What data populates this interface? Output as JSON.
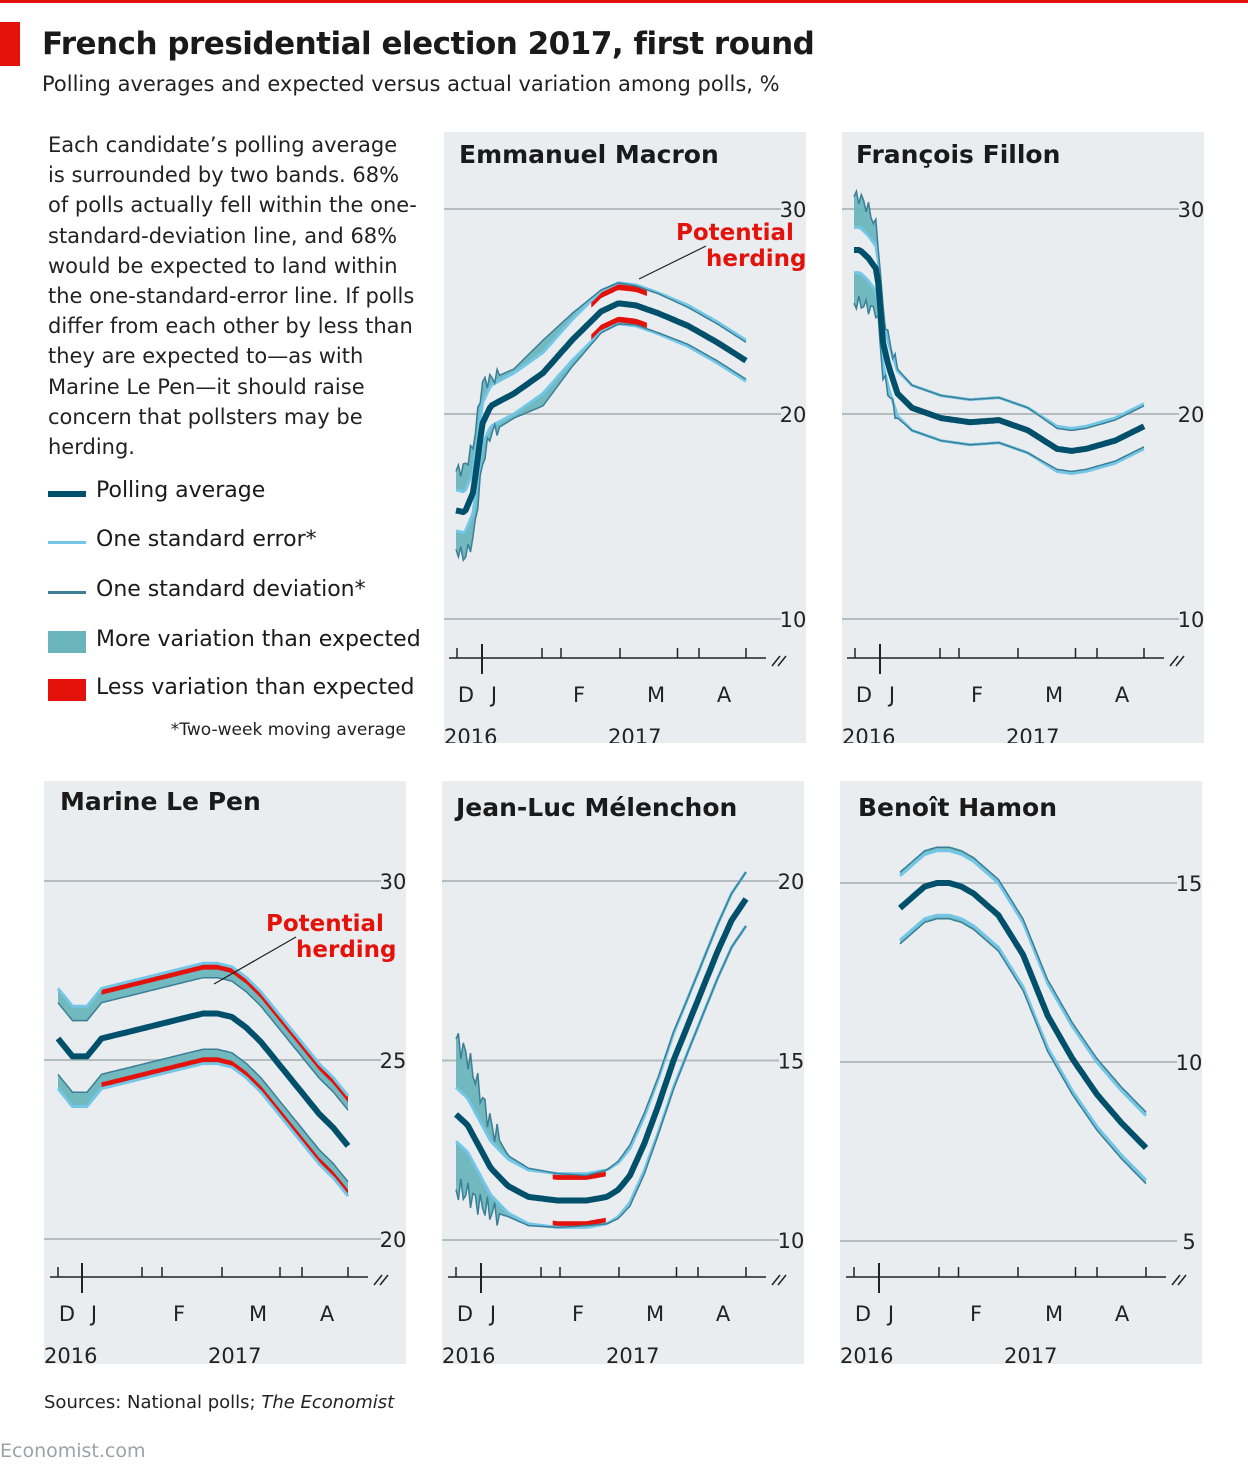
{
  "title": "French presidential election 2017, first round",
  "subtitle": "Polling averages and expected versus actual variation among polls, %",
  "intro": "Each candidate’s polling average is surrounded by two bands. 68% of polls actually fell within the one-standard-deviation line, and 68% would be expected to land within the one-standard-error line. If polls differ from each other by less than they are expected to—as with Marine Le Pen—it should raise concern that pollsters may be herding.",
  "legend": [
    {
      "label": "Polling average",
      "kind": "avg"
    },
    {
      "label": "One standard error*",
      "kind": "se"
    },
    {
      "label": "One standard deviation*",
      "kind": "sd"
    },
    {
      "label": "More variation than expected",
      "kind": "more"
    },
    {
      "label": "Less variation than expected",
      "kind": "less"
    }
  ],
  "footnote": "*Two-week moving average",
  "source_prefix": "Sources: National polls; ",
  "source_italic": "The Economist",
  "brand": "Economist.com",
  "colors": {
    "average": "#00506b",
    "standard_error": "#73c6e6",
    "standard_deviation": "#3b7e95",
    "more_variation": "#6ab5bc",
    "less_variation": "#e3120b",
    "annotation": "#e3120b",
    "panel_bg": "#e9edf0"
  },
  "chart_data": [
    {
      "type": "line",
      "title": "Emmanuel Macron",
      "ylim": [
        10,
        30
      ],
      "yticks": [
        10,
        20,
        30
      ],
      "xticks": [
        "D",
        "J",
        "F",
        "M",
        "A"
      ],
      "year_labels": [
        "2016",
        "2017"
      ],
      "annotation": "Potential herding",
      "series": [
        {
          "name": "Polling average",
          "x": [
            0,
            0.03,
            0.06,
            0.09,
            0.12,
            0.2,
            0.3,
            0.4,
            0.5,
            0.56,
            0.62,
            0.7,
            0.8,
            0.9,
            1.0
          ],
          "values": [
            15.3,
            15.2,
            16.2,
            19.5,
            20.4,
            21.0,
            22.0,
            23.6,
            25.0,
            25.4,
            25.3,
            24.9,
            24.3,
            23.5,
            22.6
          ]
        }
      ],
      "se_half_width": 1.0,
      "sd_half_width": [
        1.9,
        2.2,
        2.3,
        2.0,
        1.3,
        1.2,
        1.6,
        1.3,
        1.05,
        1.0,
        0.95,
        0.95,
        0.9,
        0.9,
        0.9
      ],
      "less_variation_x": [
        0.46,
        0.66
      ]
    },
    {
      "type": "line",
      "title": "François Fillon",
      "ylim": [
        10,
        30
      ],
      "yticks": [
        10,
        20,
        30
      ],
      "xticks": [
        "D",
        "J",
        "F",
        "M",
        "A"
      ],
      "year_labels": [
        "2016",
        "2017"
      ],
      "series": [
        {
          "name": "Polling average",
          "x": [
            0,
            0.02,
            0.05,
            0.08,
            0.1,
            0.12,
            0.15,
            0.2,
            0.3,
            0.4,
            0.5,
            0.6,
            0.7,
            0.75,
            0.8,
            0.9,
            1.0
          ],
          "values": [
            28.0,
            28.0,
            27.6,
            27.0,
            23.5,
            22.3,
            21.0,
            20.3,
            19.8,
            19.6,
            19.7,
            19.2,
            18.3,
            18.2,
            18.3,
            18.7,
            19.4
          ]
        }
      ],
      "se_half_width": 1.1,
      "sd_half_width": [
        2.6,
        2.6,
        2.4,
        2.0,
        1.6,
        1.3,
        1.2,
        1.1,
        1.1,
        1.1,
        1.1,
        1.1,
        1.0,
        1.0,
        1.0,
        1.0,
        1.0
      ],
      "less_variation_x": []
    },
    {
      "type": "line",
      "title": "Marine Le Pen",
      "ylim": [
        20,
        30
      ],
      "yticks": [
        20,
        25,
        30
      ],
      "xticks": [
        "D",
        "J",
        "F",
        "M",
        "A"
      ],
      "year_labels": [
        "2016",
        "2017"
      ],
      "annotation": "Potential herding",
      "series": [
        {
          "name": "Polling average",
          "x": [
            0,
            0.05,
            0.1,
            0.15,
            0.2,
            0.3,
            0.4,
            0.5,
            0.55,
            0.6,
            0.65,
            0.7,
            0.75,
            0.8,
            0.85,
            0.9,
            0.95,
            1.0
          ],
          "values": [
            25.6,
            25.1,
            25.1,
            25.6,
            25.7,
            25.9,
            26.1,
            26.3,
            26.3,
            26.2,
            25.9,
            25.5,
            25.0,
            24.5,
            24.0,
            23.5,
            23.1,
            22.6
          ]
        }
      ],
      "se_half_width": 1.4,
      "sd_half_width": 1.0,
      "less_variation_x": [
        0.15,
        1.0
      ]
    },
    {
      "type": "line",
      "title": "Jean-Luc Mélenchon",
      "ylim": [
        10,
        20
      ],
      "yticks": [
        10,
        15,
        20
      ],
      "xticks": [
        "D",
        "J",
        "F",
        "M",
        "A"
      ],
      "year_labels": [
        "2016",
        "2017"
      ],
      "series": [
        {
          "name": "Polling average",
          "x": [
            0,
            0.04,
            0.08,
            0.12,
            0.18,
            0.25,
            0.35,
            0.45,
            0.52,
            0.56,
            0.6,
            0.65,
            0.7,
            0.75,
            0.8,
            0.85,
            0.9,
            0.95,
            1.0
          ],
          "values": [
            13.5,
            13.2,
            12.6,
            12.0,
            11.5,
            11.2,
            11.1,
            11.1,
            11.2,
            11.4,
            11.8,
            12.7,
            13.8,
            15.0,
            16.0,
            17.0,
            18.0,
            18.9,
            19.5
          ]
        }
      ],
      "se_half_width": 0.75,
      "sd_half_width": [
        2.1,
        1.9,
        1.6,
        1.2,
        0.85,
        0.8,
        0.75,
        0.7,
        0.75,
        0.8,
        0.85,
        0.85,
        0.8,
        0.8,
        0.75,
        0.75,
        0.75,
        0.75,
        0.75
      ],
      "less_variation_x": [
        0.33,
        0.52
      ]
    },
    {
      "type": "line",
      "title": "Benoît Hamon",
      "ylim": [
        5,
        15
      ],
      "yticks": [
        5,
        10,
        15
      ],
      "xticks": [
        "D",
        "J",
        "F",
        "M",
        "A"
      ],
      "year_labels": [
        "2016",
        "2017"
      ],
      "series": [
        {
          "name": "Polling average",
          "x": [
            0,
            0.05,
            0.1,
            0.15,
            0.2,
            0.25,
            0.3,
            0.4,
            0.5,
            0.6,
            0.7,
            0.8,
            0.9,
            1.0
          ],
          "values": [
            14.3,
            14.6,
            14.9,
            15.0,
            15.0,
            14.9,
            14.7,
            14.1,
            13.0,
            11.3,
            10.1,
            9.1,
            8.3,
            7.6
          ]
        }
      ],
      "se_half_width": 0.9,
      "sd_half_width": 1.0,
      "less_variation_x": []
    }
  ]
}
